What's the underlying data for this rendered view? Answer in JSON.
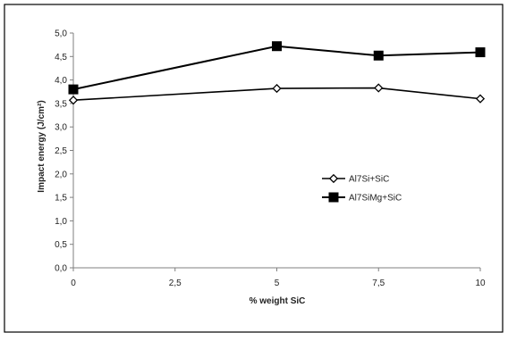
{
  "chart_data": {
    "type": "line",
    "xlabel": "% weight SiC",
    "ylabel": "Impact energy (J/cm²)",
    "xlim": [
      0,
      10
    ],
    "ylim": [
      0,
      5
    ],
    "x_ticks": [
      "0",
      "2,5",
      "5",
      "7,5",
      "10"
    ],
    "x_tick_values": [
      0,
      2.5,
      5,
      7.5,
      10
    ],
    "y_ticks": [
      "0,0",
      "0,5",
      "1,0",
      "1,5",
      "2,0",
      "2,5",
      "3,0",
      "3,5",
      "4,0",
      "4,5",
      "5,0"
    ],
    "y_tick_values": [
      0,
      0.5,
      1,
      1.5,
      2,
      2.5,
      3,
      3.5,
      4,
      4.5,
      5
    ],
    "grid": false,
    "legend_position": "center-right",
    "series": [
      {
        "name": "Al7Si+SiC",
        "marker": "diamond-open",
        "color": "#000000",
        "x": [
          0,
          5,
          7.5,
          10
        ],
        "y": [
          3.57,
          3.82,
          3.83,
          3.6
        ]
      },
      {
        "name": "Al7SiMg+SiC",
        "marker": "square-filled",
        "color": "#000000",
        "x": [
          0,
          5,
          7.5,
          10
        ],
        "y": [
          3.8,
          4.72,
          4.52,
          4.59
        ]
      }
    ]
  }
}
